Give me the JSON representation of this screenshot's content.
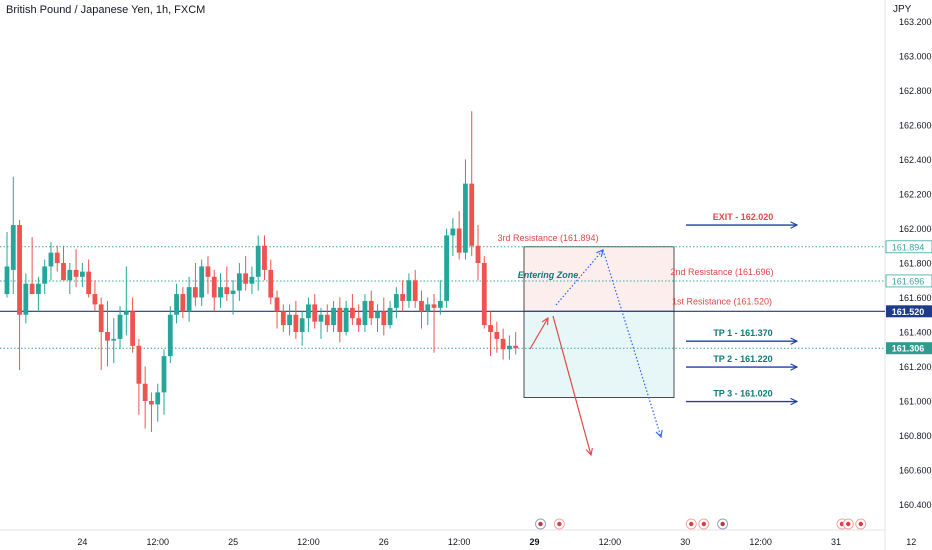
{
  "header": {
    "title": "British Pound / Japanese Yen, 1h, FXCM",
    "currency": "JPY"
  },
  "colors": {
    "up": "#26a69a",
    "down": "#ef5350",
    "blue": "#1e3fa8",
    "teal_text": "#0b7a78",
    "red_text": "#e04848",
    "dotted_teal": "#3aa6a2",
    "dotted_blue": "#2962ff",
    "price_tag_dark": "#1e3a8a",
    "price_tag_teal": "#2d9c8f"
  },
  "chart_data": {
    "type": "candlestick",
    "ylim": [
      160.33,
      163.29
    ],
    "y_ticks": [
      "163.200",
      "163.000",
      "162.800",
      "162.600",
      "162.400",
      "162.200",
      "162.000",
      "161.800",
      "161.600",
      "161.400",
      "161.200",
      "161.000",
      "160.800",
      "160.600",
      "160.400"
    ],
    "x_ticks": [
      {
        "label": "24",
        "index": 12,
        "bold": false
      },
      {
        "label": "12:00",
        "index": 24,
        "bold": false
      },
      {
        "label": "25",
        "index": 36,
        "bold": false
      },
      {
        "label": "12:00",
        "index": 48,
        "bold": false
      },
      {
        "label": "26",
        "index": 60,
        "bold": false
      },
      {
        "label": "12:00",
        "index": 72,
        "bold": false
      },
      {
        "label": "29",
        "index": 84,
        "bold": true
      },
      {
        "label": "12:00",
        "index": 96,
        "bold": false
      },
      {
        "label": "30",
        "index": 108,
        "bold": false
      },
      {
        "label": "12:00",
        "index": 120,
        "bold": false
      },
      {
        "label": "31",
        "index": 132,
        "bold": false
      },
      {
        "label": "12",
        "index": 144,
        "bold": false
      }
    ],
    "candles": [
      {
        "o": 161.62,
        "h": 161.98,
        "l": 161.6,
        "c": 161.78
      },
      {
        "o": 161.76,
        "h": 162.3,
        "l": 161.62,
        "c": 162.02
      },
      {
        "o": 162.02,
        "h": 162.05,
        "l": 161.18,
        "c": 161.5
      },
      {
        "o": 161.5,
        "h": 161.74,
        "l": 161.45,
        "c": 161.68
      },
      {
        "o": 161.68,
        "h": 161.95,
        "l": 161.62,
        "c": 161.62
      },
      {
        "o": 161.62,
        "h": 161.72,
        "l": 161.52,
        "c": 161.68
      },
      {
        "o": 161.68,
        "h": 161.82,
        "l": 161.62,
        "c": 161.78
      },
      {
        "o": 161.78,
        "h": 161.92,
        "l": 161.7,
        "c": 161.86
      },
      {
        "o": 161.86,
        "h": 161.9,
        "l": 161.75,
        "c": 161.8
      },
      {
        "o": 161.8,
        "h": 161.9,
        "l": 161.72,
        "c": 161.7
      },
      {
        "o": 161.7,
        "h": 161.8,
        "l": 161.62,
        "c": 161.76
      },
      {
        "o": 161.76,
        "h": 161.88,
        "l": 161.66,
        "c": 161.72
      },
      {
        "o": 161.72,
        "h": 161.8,
        "l": 161.66,
        "c": 161.75
      },
      {
        "o": 161.75,
        "h": 161.82,
        "l": 161.6,
        "c": 161.62
      },
      {
        "o": 161.62,
        "h": 161.7,
        "l": 161.52,
        "c": 161.56
      },
      {
        "o": 161.56,
        "h": 161.6,
        "l": 161.18,
        "c": 161.4
      },
      {
        "o": 161.4,
        "h": 161.58,
        "l": 161.2,
        "c": 161.35
      },
      {
        "o": 161.35,
        "h": 161.48,
        "l": 161.22,
        "c": 161.36
      },
      {
        "o": 161.36,
        "h": 161.55,
        "l": 161.3,
        "c": 161.5
      },
      {
        "o": 161.5,
        "h": 161.78,
        "l": 161.38,
        "c": 161.52
      },
      {
        "o": 161.52,
        "h": 161.6,
        "l": 161.28,
        "c": 161.32
      },
      {
        "o": 161.32,
        "h": 161.36,
        "l": 160.92,
        "c": 161.1
      },
      {
        "o": 161.1,
        "h": 161.2,
        "l": 160.84,
        "c": 161.0
      },
      {
        "o": 161.0,
        "h": 161.05,
        "l": 160.82,
        "c": 160.98
      },
      {
        "o": 160.98,
        "h": 161.1,
        "l": 160.88,
        "c": 161.05
      },
      {
        "o": 161.05,
        "h": 161.3,
        "l": 160.92,
        "c": 161.26
      },
      {
        "o": 161.26,
        "h": 161.55,
        "l": 161.22,
        "c": 161.5
      },
      {
        "o": 161.5,
        "h": 161.68,
        "l": 161.45,
        "c": 161.62
      },
      {
        "o": 161.62,
        "h": 161.66,
        "l": 161.48,
        "c": 161.52
      },
      {
        "o": 161.52,
        "h": 161.72,
        "l": 161.46,
        "c": 161.66
      },
      {
        "o": 161.66,
        "h": 161.8,
        "l": 161.55,
        "c": 161.6
      },
      {
        "o": 161.6,
        "h": 161.82,
        "l": 161.55,
        "c": 161.78
      },
      {
        "o": 161.78,
        "h": 161.84,
        "l": 161.62,
        "c": 161.72
      },
      {
        "o": 161.72,
        "h": 161.76,
        "l": 161.52,
        "c": 161.6
      },
      {
        "o": 161.6,
        "h": 161.74,
        "l": 161.54,
        "c": 161.66
      },
      {
        "o": 161.66,
        "h": 161.78,
        "l": 161.58,
        "c": 161.62
      },
      {
        "o": 161.62,
        "h": 161.7,
        "l": 161.5,
        "c": 161.64
      },
      {
        "o": 161.64,
        "h": 161.8,
        "l": 161.58,
        "c": 161.74
      },
      {
        "o": 161.74,
        "h": 161.84,
        "l": 161.64,
        "c": 161.68
      },
      {
        "o": 161.68,
        "h": 161.78,
        "l": 161.62,
        "c": 161.72
      },
      {
        "o": 161.72,
        "h": 161.96,
        "l": 161.64,
        "c": 161.9
      },
      {
        "o": 161.9,
        "h": 161.96,
        "l": 161.7,
        "c": 161.76
      },
      {
        "o": 161.76,
        "h": 161.82,
        "l": 161.56,
        "c": 161.6
      },
      {
        "o": 161.6,
        "h": 161.64,
        "l": 161.42,
        "c": 161.52
      },
      {
        "o": 161.52,
        "h": 161.56,
        "l": 161.4,
        "c": 161.44
      },
      {
        "o": 161.44,
        "h": 161.56,
        "l": 161.38,
        "c": 161.5
      },
      {
        "o": 161.5,
        "h": 161.58,
        "l": 161.36,
        "c": 161.4
      },
      {
        "o": 161.4,
        "h": 161.52,
        "l": 161.32,
        "c": 161.48
      },
      {
        "o": 161.48,
        "h": 161.6,
        "l": 161.4,
        "c": 161.56
      },
      {
        "o": 161.56,
        "h": 161.62,
        "l": 161.42,
        "c": 161.46
      },
      {
        "o": 161.46,
        "h": 161.54,
        "l": 161.36,
        "c": 161.5
      },
      {
        "o": 161.5,
        "h": 161.56,
        "l": 161.4,
        "c": 161.44
      },
      {
        "o": 161.44,
        "h": 161.58,
        "l": 161.4,
        "c": 161.54
      },
      {
        "o": 161.54,
        "h": 161.6,
        "l": 161.34,
        "c": 161.4
      },
      {
        "o": 161.4,
        "h": 161.58,
        "l": 161.38,
        "c": 161.54
      },
      {
        "o": 161.54,
        "h": 161.62,
        "l": 161.44,
        "c": 161.48
      },
      {
        "o": 161.48,
        "h": 161.56,
        "l": 161.4,
        "c": 161.44
      },
      {
        "o": 161.44,
        "h": 161.62,
        "l": 161.4,
        "c": 161.58
      },
      {
        "o": 161.58,
        "h": 161.64,
        "l": 161.44,
        "c": 161.48
      },
      {
        "o": 161.48,
        "h": 161.56,
        "l": 161.4,
        "c": 161.52
      },
      {
        "o": 161.52,
        "h": 161.6,
        "l": 161.38,
        "c": 161.44
      },
      {
        "o": 161.44,
        "h": 161.58,
        "l": 161.42,
        "c": 161.54
      },
      {
        "o": 161.54,
        "h": 161.66,
        "l": 161.48,
        "c": 161.62
      },
      {
        "o": 161.62,
        "h": 161.7,
        "l": 161.52,
        "c": 161.58
      },
      {
        "o": 161.58,
        "h": 161.74,
        "l": 161.54,
        "c": 161.7
      },
      {
        "o": 161.7,
        "h": 161.76,
        "l": 161.54,
        "c": 161.58
      },
      {
        "o": 161.58,
        "h": 161.64,
        "l": 161.42,
        "c": 161.52
      },
      {
        "o": 161.52,
        "h": 161.6,
        "l": 161.44,
        "c": 161.56
      },
      {
        "o": 161.56,
        "h": 161.62,
        "l": 161.28,
        "c": 161.54
      },
      {
        "o": 161.54,
        "h": 161.7,
        "l": 161.5,
        "c": 161.58
      },
      {
        "o": 161.58,
        "h": 162.0,
        "l": 161.54,
        "c": 161.96
      },
      {
        "o": 161.96,
        "h": 162.06,
        "l": 161.84,
        "c": 162.0
      },
      {
        "o": 162.0,
        "h": 162.1,
        "l": 161.82,
        "c": 161.86
      },
      {
        "o": 161.86,
        "h": 162.4,
        "l": 161.82,
        "c": 162.26
      },
      {
        "o": 162.26,
        "h": 162.68,
        "l": 161.84,
        "c": 161.9
      },
      {
        "o": 161.9,
        "h": 162.02,
        "l": 161.7,
        "c": 161.8
      },
      {
        "o": 161.8,
        "h": 161.84,
        "l": 161.42,
        "c": 161.44
      },
      {
        "o": 161.44,
        "h": 161.52,
        "l": 161.26,
        "c": 161.4
      },
      {
        "o": 161.4,
        "h": 161.46,
        "l": 161.28,
        "c": 161.36
      },
      {
        "o": 161.36,
        "h": 161.42,
        "l": 161.24,
        "c": 161.3
      },
      {
        "o": 161.3,
        "h": 161.38,
        "l": 161.24,
        "c": 161.32
      },
      {
        "o": 161.32,
        "h": 161.4,
        "l": 161.27,
        "c": 161.306
      }
    ],
    "levels": [
      {
        "label": "3rd Resistance (161.894)",
        "value": 161.894,
        "style": "dotted",
        "tag": "161.894"
      },
      {
        "label": "2nd Resistance (161.696)",
        "value": 161.696,
        "style": "dotted",
        "tag": "161.696"
      },
      {
        "label": "1st Resistance (161.520)",
        "value": 161.52,
        "style": "solid",
        "tag": "161.520"
      },
      {
        "label": "",
        "value": 161.306,
        "style": "dotted",
        "tag": "161.306"
      }
    ],
    "targets": [
      {
        "label": "EXIT - 162.020",
        "value": 162.02
      },
      {
        "label": "TP 1 - 161.370",
        "value": 161.37
      },
      {
        "label": "TP 2 - 161.220",
        "value": 161.22
      },
      {
        "label": "TP 3 - 161.020",
        "value": 161.02
      }
    ],
    "zone": {
      "label": "Entering Zone",
      "top": 161.894,
      "mid": 161.52,
      "bottom": 161.02
    },
    "events": [
      {
        "index": 84,
        "kind": "flag"
      },
      {
        "index": 87,
        "kind": "dot"
      },
      {
        "index": 108,
        "kind": "dot"
      },
      {
        "index": 110,
        "kind": "dot"
      },
      {
        "index": 113,
        "kind": "flag"
      },
      {
        "index": 132,
        "kind": "dot"
      },
      {
        "index": 133,
        "kind": "dot"
      },
      {
        "index": 135,
        "kind": "dot"
      }
    ]
  }
}
